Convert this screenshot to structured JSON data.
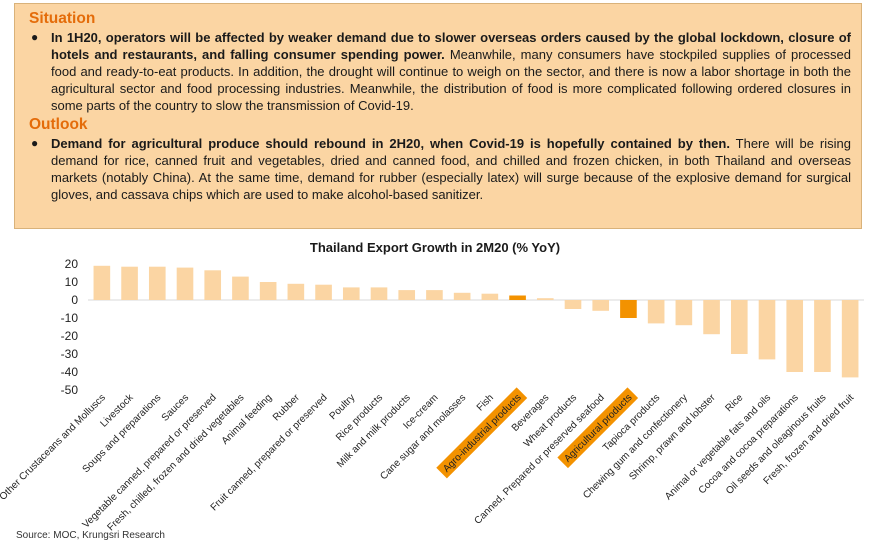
{
  "situation": {
    "heading": "Situation",
    "bold": "In 1H20, operators will be affected by weaker demand due to slower overseas orders caused by the global lockdown, closure of hotels and restaurants, and falling consumer spending power.",
    "text": " Meanwhile, many consumers have stockpiled supplies of processed food and ready-to-eat products. In addition, the drought will continue to weigh on the sector, and there is now a labor shortage in both the agricultural sector and food processing industries. Meanwhile, the distribution of food is more complicated following ordered closures in some parts of the country to slow the transmission of Covid-19."
  },
  "outlook": {
    "heading": "Outlook",
    "bold": "Demand for agricultural produce should rebound in 2H20, when Covid-19 is hopefully contained by then.",
    "text": " There will be rising demand for rice, canned fruit and vegetables, dried and canned food, and chilled and frozen chicken, in both Thailand and overseas markets (notably China). At the same time, demand for rubber (especially latex) will surge because of the explosive demand for surgical gloves, and cassava chips which are used to make alcohol-based sanitizer."
  },
  "colors": {
    "bar": "#fbd5a3",
    "highlight": "#f39200",
    "highlight_label_bg": "#f39200"
  },
  "chart_data": {
    "type": "bar",
    "title": "Thailand Export Growth in 2M20 (% YoY)",
    "xlabel": "",
    "ylabel": "",
    "ylim": [
      -50,
      20
    ],
    "yticks": [
      20,
      10,
      0,
      -10,
      -20,
      -30,
      -40,
      -50
    ],
    "grid": false,
    "categories": [
      "Other Crustaceans and Molluscs",
      "Livestock",
      "Soups and preparations",
      "Sauces",
      "Vegetable canned, prepared or preserved",
      "Fresh, chilled, frozen and dried vegetables",
      "Animal feeding",
      "Rubber",
      "Fruit canned, prepared or preserved",
      "Poultry",
      "Rice products",
      "Milk and milk products",
      "Ice-cream",
      "Cane sugar and molasses",
      "Fish",
      "Agro-industrial products",
      "Beverages",
      "Wheat products",
      "Canned, Prepared or preserved seafood",
      "Agricultural products",
      "Tapioca products",
      "Chewing gum and confectionery",
      "Shrimp, prawn and lobster",
      "Rice",
      "Animal or vegetable fats and oils",
      "Cocoa and cocoa preparations",
      "Oil seeds and oleaginous fruits",
      "Fresh, frozen and dried fruit"
    ],
    "values": [
      19,
      18.5,
      18.5,
      18,
      16.5,
      13,
      10,
      9,
      8.5,
      7,
      7,
      5.5,
      5.5,
      4,
      3.5,
      2.5,
      1,
      -5,
      -6,
      -10,
      -13,
      -14,
      -19,
      -30,
      -33,
      -40,
      -40,
      -43
    ],
    "highlighted": [
      "Agro-industrial products",
      "Agricultural products"
    ]
  },
  "source": "Source: MOC, Krungsri Research"
}
